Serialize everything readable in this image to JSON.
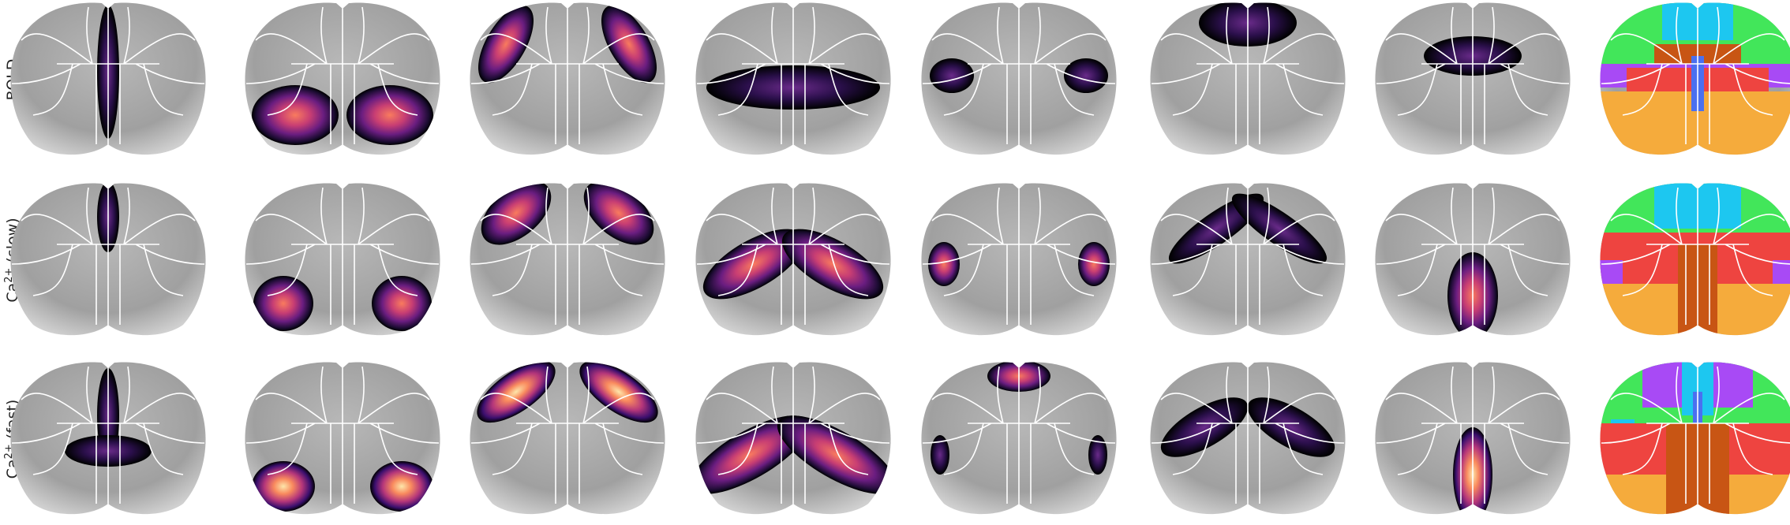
{
  "row_labels": [
    {
      "text": "BOLD"
    },
    {
      "text": "Ca",
      "superscript": "2+",
      "suffix": " (slow)"
    },
    {
      "text": "Ca",
      "superscript": "2+",
      "suffix": " (fast)"
    }
  ]
}
